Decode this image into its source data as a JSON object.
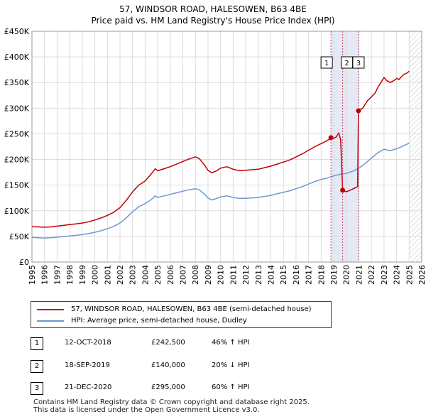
{
  "header": {
    "title": "57, WINDSOR ROAD, HALESOWEN, B63 4BE",
    "subtitle": "Price paid vs. HM Land Registry's House Price Index (HPI)"
  },
  "colors": {
    "property": "#c00000",
    "hpi": "#6f97cf",
    "marker_line": "#d04060",
    "shade": "#e4e9f5",
    "grid": "#dddddd",
    "hatch": "#bbbbbb"
  },
  "legend": {
    "items": [
      {
        "label": "57, WINDSOR ROAD, HALESOWEN, B63 4BE (semi-detached house)",
        "color": "#c00000"
      },
      {
        "label": "HPI: Average price, semi-detached house, Dudley",
        "color": "#6f97cf"
      }
    ]
  },
  "transactions": [
    {
      "num": "1",
      "date": "12-OCT-2018",
      "price": "£242,500",
      "hpi": "46% ↑ HPI"
    },
    {
      "num": "2",
      "date": "18-SEP-2019",
      "price": "£140,000",
      "hpi": "20% ↓ HPI"
    },
    {
      "num": "3",
      "date": "21-DEC-2020",
      "price": "£295,000",
      "hpi": "60% ↑ HPI"
    }
  ],
  "footer": {
    "line1": "Contains HM Land Registry data © Crown copyright and database right 2025.",
    "line2": "This data is licensed under the Open Government Licence v3.0."
  },
  "chart_data": {
    "type": "line",
    "title": "57, WINDSOR ROAD, HALESOWEN, B63 4BE",
    "subtitle": "Price paid vs. HM Land Registry's House Price Index (HPI)",
    "xlim": [
      1995,
      2026
    ],
    "ylim": [
      0,
      450000
    ],
    "x_ticks": [
      "1995",
      "1996",
      "1997",
      "1998",
      "1999",
      "2000",
      "2001",
      "2002",
      "2003",
      "2004",
      "2005",
      "2006",
      "2007",
      "2008",
      "2009",
      "2010",
      "2011",
      "2012",
      "2013",
      "2014",
      "2015",
      "2016",
      "2017",
      "2018",
      "2019",
      "2020",
      "2021",
      "2022",
      "2023",
      "2024",
      "2025",
      "2026"
    ],
    "y_ticks": [
      {
        "value": 0,
        "label": "£0"
      },
      {
        "value": 50000,
        "label": "£50K"
      },
      {
        "value": 100000,
        "label": "£100K"
      },
      {
        "value": 150000,
        "label": "£150K"
      },
      {
        "value": 200000,
        "label": "£200K"
      },
      {
        "value": 250000,
        "label": "£250K"
      },
      {
        "value": 300000,
        "label": "£300K"
      },
      {
        "value": 350000,
        "label": "£350K"
      },
      {
        "value": 400000,
        "label": "£400K"
      },
      {
        "value": 450000,
        "label": "£450K"
      }
    ],
    "shaded_region": {
      "from": 2018.78,
      "to": 2020.97
    },
    "forecast_hatch_from": 2025.0,
    "markers": [
      {
        "label": "1",
        "x": 2018.78,
        "y": 242500
      },
      {
        "label": "2",
        "x": 2019.71,
        "y": 140000
      },
      {
        "label": "3",
        "x": 2020.97,
        "y": 295000
      }
    ],
    "series": [
      {
        "name": "57, WINDSOR ROAD, HALESOWEN, B63 4BE (semi-detached house)",
        "color": "#c00000",
        "points": [
          [
            1995.0,
            69000
          ],
          [
            1995.5,
            68500
          ],
          [
            1996.0,
            68000
          ],
          [
            1996.5,
            68500
          ],
          [
            1997.0,
            70000
          ],
          [
            1997.5,
            71500
          ],
          [
            1998.0,
            73000
          ],
          [
            1998.5,
            74500
          ],
          [
            1999.0,
            76000
          ],
          [
            1999.5,
            78500
          ],
          [
            2000.0,
            82000
          ],
          [
            2000.5,
            86000
          ],
          [
            2001.0,
            91000
          ],
          [
            2001.5,
            97000
          ],
          [
            2002.0,
            106000
          ],
          [
            2002.5,
            120000
          ],
          [
            2003.0,
            137000
          ],
          [
            2003.5,
            150000
          ],
          [
            2004.0,
            158000
          ],
          [
            2004.5,
            172000
          ],
          [
            2004.8,
            182000
          ],
          [
            2005.0,
            178000
          ],
          [
            2005.5,
            182000
          ],
          [
            2006.0,
            186000
          ],
          [
            2006.5,
            191000
          ],
          [
            2007.0,
            196000
          ],
          [
            2007.5,
            201000
          ],
          [
            2008.0,
            205000
          ],
          [
            2008.3,
            202000
          ],
          [
            2008.7,
            190000
          ],
          [
            2009.0,
            179000
          ],
          [
            2009.3,
            174000
          ],
          [
            2009.7,
            178000
          ],
          [
            2010.0,
            183000
          ],
          [
            2010.5,
            186000
          ],
          [
            2011.0,
            181000
          ],
          [
            2011.5,
            178000
          ],
          [
            2012.0,
            179000
          ],
          [
            2012.5,
            180000
          ],
          [
            2013.0,
            181000
          ],
          [
            2013.5,
            184000
          ],
          [
            2014.0,
            187000
          ],
          [
            2014.5,
            191000
          ],
          [
            2015.0,
            195000
          ],
          [
            2015.5,
            199000
          ],
          [
            2016.0,
            205000
          ],
          [
            2016.5,
            211000
          ],
          [
            2017.0,
            218000
          ],
          [
            2017.5,
            225000
          ],
          [
            2018.0,
            231000
          ],
          [
            2018.5,
            237000
          ],
          [
            2018.78,
            242500
          ],
          [
            2019.0,
            241000
          ],
          [
            2019.2,
            244000
          ],
          [
            2019.4,
            252000
          ],
          [
            2019.55,
            238000
          ],
          [
            2019.71,
            140000
          ],
          [
            2020.0,
            137000
          ],
          [
            2020.4,
            141000
          ],
          [
            2020.9,
            147000
          ],
          [
            2020.97,
            295000
          ],
          [
            2021.3,
            300000
          ],
          [
            2021.7,
            315000
          ],
          [
            2022.0,
            322000
          ],
          [
            2022.3,
            330000
          ],
          [
            2022.5,
            340000
          ],
          [
            2022.8,
            352000
          ],
          [
            2023.0,
            360000
          ],
          [
            2023.2,
            354000
          ],
          [
            2023.5,
            350000
          ],
          [
            2023.8,
            354000
          ],
          [
            2024.0,
            358000
          ],
          [
            2024.2,
            356000
          ],
          [
            2024.4,
            362000
          ],
          [
            2024.6,
            366000
          ],
          [
            2024.8,
            368000
          ],
          [
            2025.0,
            372000
          ]
        ]
      },
      {
        "name": "HPI: Average price, semi-detached house, Dudley",
        "color": "#6f97cf",
        "points": [
          [
            1995.0,
            48000
          ],
          [
            1995.5,
            47500
          ],
          [
            1996.0,
            47000
          ],
          [
            1996.5,
            47500
          ],
          [
            1997.0,
            48500
          ],
          [
            1997.5,
            49500
          ],
          [
            1998.0,
            51000
          ],
          [
            1998.5,
            52000
          ],
          [
            1999.0,
            53500
          ],
          [
            1999.5,
            55500
          ],
          [
            2000.0,
            58000
          ],
          [
            2000.5,
            61000
          ],
          [
            2001.0,
            65000
          ],
          [
            2001.5,
            69500
          ],
          [
            2002.0,
            76000
          ],
          [
            2002.5,
            86000
          ],
          [
            2003.0,
            98000
          ],
          [
            2003.5,
            108000
          ],
          [
            2004.0,
            114000
          ],
          [
            2004.5,
            122000
          ],
          [
            2004.8,
            129000
          ],
          [
            2005.0,
            126000
          ],
          [
            2005.5,
            129000
          ],
          [
            2006.0,
            132000
          ],
          [
            2006.5,
            135000
          ],
          [
            2007.0,
            138000
          ],
          [
            2007.5,
            141000
          ],
          [
            2008.0,
            143000
          ],
          [
            2008.3,
            141000
          ],
          [
            2008.7,
            133000
          ],
          [
            2009.0,
            125000
          ],
          [
            2009.3,
            121000
          ],
          [
            2009.7,
            124000
          ],
          [
            2010.0,
            127000
          ],
          [
            2010.5,
            129000
          ],
          [
            2011.0,
            126000
          ],
          [
            2011.5,
            124000
          ],
          [
            2012.0,
            124500
          ],
          [
            2012.5,
            125000
          ],
          [
            2013.0,
            126000
          ],
          [
            2013.5,
            128000
          ],
          [
            2014.0,
            130000
          ],
          [
            2014.5,
            133000
          ],
          [
            2015.0,
            136000
          ],
          [
            2015.5,
            139000
          ],
          [
            2016.0,
            143000
          ],
          [
            2016.5,
            147000
          ],
          [
            2017.0,
            152000
          ],
          [
            2017.5,
            157000
          ],
          [
            2018.0,
            161000
          ],
          [
            2018.5,
            164000
          ],
          [
            2019.0,
            168000
          ],
          [
            2019.5,
            171000
          ],
          [
            2020.0,
            173000
          ],
          [
            2020.5,
            177000
          ],
          [
            2021.0,
            183000
          ],
          [
            2021.5,
            192000
          ],
          [
            2022.0,
            203000
          ],
          [
            2022.5,
            213000
          ],
          [
            2023.0,
            220000
          ],
          [
            2023.5,
            217000
          ],
          [
            2024.0,
            221000
          ],
          [
            2024.5,
            226000
          ],
          [
            2025.0,
            232000
          ]
        ]
      }
    ]
  }
}
